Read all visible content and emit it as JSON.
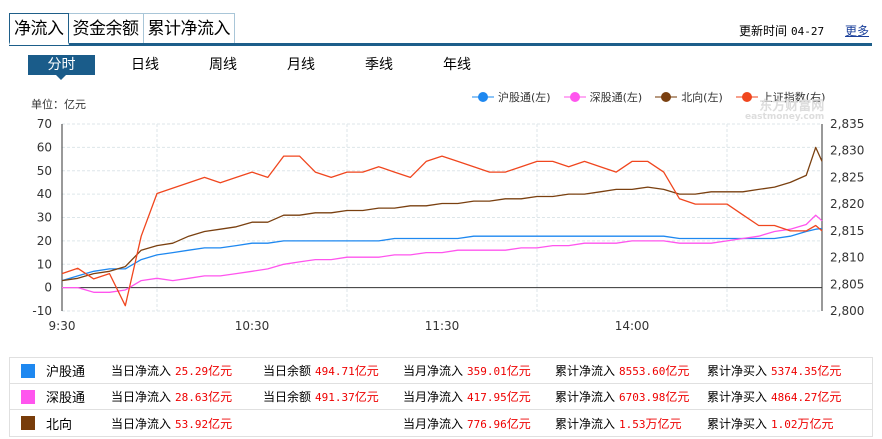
{
  "tabs": [
    {
      "label": "净流入",
      "active": true
    },
    {
      "label": "资金余额",
      "active": false
    },
    {
      "label": "累计净流入",
      "active": false
    }
  ],
  "header": {
    "update_label": "更新时间",
    "update_date": "04-27",
    "more_label": "更多"
  },
  "subtabs": [
    {
      "label": "分时",
      "active": true
    },
    {
      "label": "日线",
      "active": false
    },
    {
      "label": "周线",
      "active": false
    },
    {
      "label": "月线",
      "active": false
    },
    {
      "label": "季线",
      "active": false
    },
    {
      "label": "年线",
      "active": false
    }
  ],
  "unit_label": "单位：亿元",
  "watermark": {
    "line1": "东方财富网",
    "line2": "eastmoney.com"
  },
  "legend": [
    {
      "label": "沪股通(左)",
      "color": "#1e88f0"
    },
    {
      "label": "深股通(左)",
      "color": "#ff55ee"
    },
    {
      "label": "北向(左)",
      "color": "#7a4010"
    },
    {
      "label": "上证指数(右)",
      "color": "#f0461e"
    }
  ],
  "chart_data": {
    "type": "line",
    "title": "",
    "xlabel": "",
    "ylabel": "单位：亿元",
    "x_ticks": [
      "9:30",
      "10:30",
      "11:30",
      "14:00"
    ],
    "y_left": {
      "ticks": [
        -10,
        0,
        10,
        20,
        30,
        40,
        50,
        60,
        70
      ],
      "range": [
        -10,
        70
      ]
    },
    "y_right": {
      "ticks": [
        "2,800",
        "2,805",
        "2,810",
        "2,815",
        "2,820",
        "2,825",
        "2,830",
        "2,835"
      ],
      "range": [
        2800,
        2835
      ]
    },
    "grid": true,
    "legend_position": "top-right",
    "x_minutes": [
      0,
      5,
      10,
      15,
      20,
      25,
      30,
      35,
      40,
      45,
      50,
      55,
      60,
      65,
      70,
      75,
      80,
      85,
      90,
      95,
      100,
      105,
      110,
      115,
      120,
      125,
      130,
      135,
      140,
      145,
      150,
      155,
      160,
      165,
      170,
      175,
      180,
      185,
      190,
      195,
      200,
      205,
      210,
      215,
      220,
      225,
      230,
      235,
      238,
      240
    ],
    "series": [
      {
        "name": "沪股通",
        "axis": "left",
        "color": "#1e88f0",
        "values": [
          3,
          5,
          7,
          8,
          8,
          12,
          14,
          15,
          16,
          17,
          17,
          18,
          19,
          19,
          20,
          20,
          20,
          20,
          20,
          20,
          20,
          21,
          21,
          21,
          21,
          21,
          22,
          22,
          22,
          22,
          22,
          22,
          22,
          22,
          22,
          22,
          22,
          22,
          22,
          21,
          21,
          21,
          21,
          21,
          21,
          21,
          22,
          24,
          25,
          25.3
        ]
      },
      {
        "name": "深股通",
        "axis": "left",
        "color": "#ff55ee",
        "values": [
          0,
          0,
          -2,
          -2,
          -1,
          3,
          4,
          3,
          4,
          5,
          5,
          6,
          7,
          8,
          10,
          11,
          12,
          12,
          13,
          13,
          13,
          14,
          14,
          15,
          15,
          16,
          16,
          16,
          16,
          17,
          17,
          18,
          18,
          19,
          19,
          19,
          20,
          20,
          20,
          19,
          19,
          19,
          20,
          21,
          22,
          24,
          25,
          27,
          31,
          28.6
        ]
      },
      {
        "name": "北向",
        "axis": "left",
        "color": "#7a4010",
        "values": [
          3,
          4,
          6,
          7,
          9,
          16,
          18,
          19,
          22,
          24,
          25,
          26,
          28,
          28,
          31,
          31,
          32,
          32,
          33,
          33,
          34,
          34,
          35,
          35,
          36,
          36,
          37,
          37,
          38,
          38,
          39,
          39,
          40,
          40,
          41,
          42,
          42,
          43,
          42,
          40,
          40,
          41,
          41,
          41,
          42,
          43,
          45,
          48,
          60,
          54
        ]
      },
      {
        "name": "上证指数",
        "axis": "right",
        "color": "#f0461e",
        "values": [
          2807,
          2808,
          2806,
          2807,
          2801,
          2814,
          2822,
          2823,
          2824,
          2825,
          2824,
          2825,
          2826,
          2825,
          2829,
          2829,
          2826,
          2825,
          2826,
          2826,
          2827,
          2826,
          2825,
          2828,
          2829,
          2828,
          2827,
          2826,
          2826,
          2827,
          2828,
          2828,
          2827,
          2828,
          2827,
          2826,
          2828,
          2828,
          2826,
          2821,
          2820,
          2820,
          2820,
          2818,
          2816,
          2816,
          2815,
          2815,
          2816,
          2815
        ]
      }
    ]
  },
  "summary": [
    {
      "name": "沪股通",
      "color": "#1e88f0",
      "cells": [
        {
          "label": "当日净流入",
          "value": "25.29",
          "unit": "亿元"
        },
        {
          "label": "当日余额",
          "value": "494.71",
          "unit": "亿元"
        },
        {
          "label": "当月净流入",
          "value": "359.01",
          "unit": "亿元"
        },
        {
          "label": "累计净流入",
          "value": "8553.60",
          "unit": "亿元"
        },
        {
          "label": "累计净买入",
          "value": "5374.35",
          "unit": "亿元"
        }
      ]
    },
    {
      "name": "深股通",
      "color": "#ff55ee",
      "cells": [
        {
          "label": "当日净流入",
          "value": "28.63",
          "unit": "亿元"
        },
        {
          "label": "当日余额",
          "value": "491.37",
          "unit": "亿元"
        },
        {
          "label": "当月净流入",
          "value": "417.95",
          "unit": "亿元"
        },
        {
          "label": "累计净流入",
          "value": "6703.98",
          "unit": "亿元"
        },
        {
          "label": "累计净买入",
          "value": "4864.27",
          "unit": "亿元"
        }
      ]
    },
    {
      "name": "北向",
      "color": "#783c0a",
      "cells": [
        {
          "label": "当日净流入",
          "value": "53.92",
          "unit": "亿元"
        },
        {
          "label": "",
          "value": "",
          "unit": ""
        },
        {
          "label": "当月净流入",
          "value": "776.96",
          "unit": "亿元"
        },
        {
          "label": "累计净流入",
          "value": "1.53",
          "unit": "万亿元"
        },
        {
          "label": "累计净买入",
          "value": "1.02",
          "unit": "万亿元"
        }
      ]
    }
  ]
}
